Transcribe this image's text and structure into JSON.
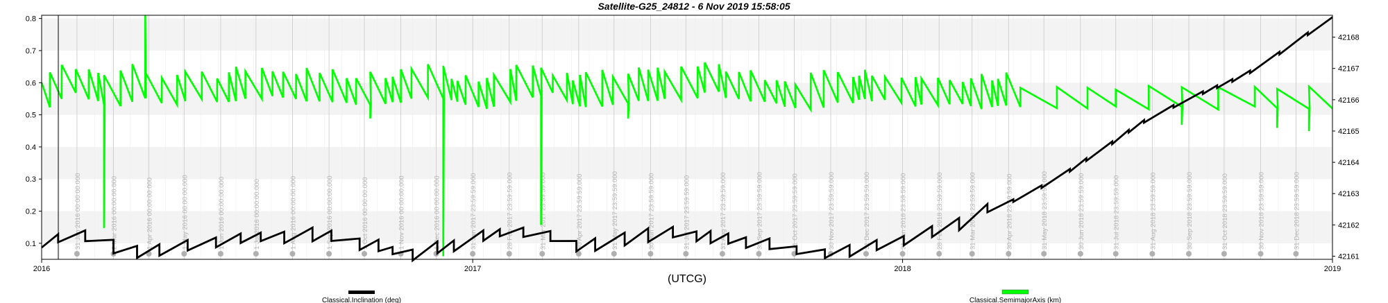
{
  "chart_data": {
    "type": "line",
    "title": "Satellite-G25_24812 -  6 Nov 2019 15:58:05",
    "xlabel": "(UTCG)",
    "x_range": [
      "2016-01-01",
      "2019-01-01"
    ],
    "x_major_ticks": [
      "2016",
      "2017",
      "2018",
      "2019"
    ],
    "left_axis": {
      "range": [
        0.05,
        0.81
      ],
      "ticks": [
        "0.1",
        "0.2",
        "0.3",
        "0.4",
        "0.5",
        "0.6",
        "0.7",
        "0.8"
      ]
    },
    "right_axis": {
      "range": [
        42160.9,
        42168.7
      ],
      "ticks": [
        "42161",
        "42162",
        "42163",
        "42164",
        "42165",
        "42166",
        "42167",
        "42168"
      ]
    },
    "grid": true,
    "legend_placement": "bottom",
    "event_markers": [
      {
        "date": "2016-01-31",
        "label": "31 Jan 2016 00:00:00.000"
      },
      {
        "date": "2016-03-02",
        "label": "2 Mar 2016 00:00:00.000"
      },
      {
        "date": "2016-04-01",
        "label": "1 Apr 2016 00:00:00.000"
      },
      {
        "date": "2016-05-01",
        "label": "1 May 2016 00:00:00.000"
      },
      {
        "date": "2016-06-01",
        "label": "1 Jun 2016 00:00:00.000"
      },
      {
        "date": "2016-07-01",
        "label": "1 Jul 2016 00:00:00.000"
      },
      {
        "date": "2016-08-01",
        "label": "1 Aug 2016 00:00:00.000"
      },
      {
        "date": "2016-09-01",
        "label": "1 Sep 2016 00:00:00.000"
      },
      {
        "date": "2016-10-01",
        "label": "1 Oct 2016 00:00:00.000"
      },
      {
        "date": "2016-11-01",
        "label": "1 Nov 2016 00:00:00.000"
      },
      {
        "date": "2016-12-01",
        "label": "1 Dec 2016 00:00:00.000"
      },
      {
        "date": "2017-01-01",
        "label": "31 Jan 2017 23:59:59.000"
      },
      {
        "date": "2017-02-01",
        "label": "28 Feb 2017 23:59:59.000"
      },
      {
        "date": "2017-03-01",
        "label": "31 Mar 2017 23:59:59.000"
      },
      {
        "date": "2017-04-01",
        "label": "30 Apr 2017 23:59:59.000"
      },
      {
        "date": "2017-05-01",
        "label": "31 May 2017 23:59:59.000"
      },
      {
        "date": "2017-06-01",
        "label": "30 Jun 2017 23:59:59.000"
      },
      {
        "date": "2017-07-01",
        "label": "31 Jul 2017 23:59:59.000"
      },
      {
        "date": "2017-08-01",
        "label": "31 Aug 2017 23:59:59.000"
      },
      {
        "date": "2017-09-01",
        "label": "30 Sep 2017 23:59:59.000"
      },
      {
        "date": "2017-10-01",
        "label": "31 Oct 2017 23:59:59.000"
      },
      {
        "date": "2017-11-01",
        "label": "30 Nov 2017 23:59:59.000"
      },
      {
        "date": "2017-12-01",
        "label": "31 Dec 2017 23:59:59.000"
      },
      {
        "date": "2018-01-01",
        "label": "31 Jan 2018 23:59:59.000"
      },
      {
        "date": "2018-02-01",
        "label": "28 Feb 2018 23:59:59.000"
      },
      {
        "date": "2018-03-01",
        "label": "31 Mar 2018 23:59:59.000"
      },
      {
        "date": "2018-04-01",
        "label": "30 Apr 2018 23:59:59.000"
      },
      {
        "date": "2018-05-01",
        "label": "31 May 2018 23:59:59.000"
      },
      {
        "date": "2018-06-01",
        "label": "30 Jun 2018 23:59:59.000"
      },
      {
        "date": "2018-07-01",
        "label": "31 Jul 2018 23:59:59.000"
      },
      {
        "date": "2018-08-01",
        "label": "31 Aug 2018 23:59:59.000"
      },
      {
        "date": "2018-09-01",
        "label": "30 Sep 2018 23:59:59.000"
      },
      {
        "date": "2018-10-01",
        "label": "31 Oct 2018 23:59:59.000"
      },
      {
        "date": "2018-11-01",
        "label": "30 Nov 2018 23:59:59.000"
      },
      {
        "date": "2018-12-01",
        "label": "31 Dec 2018 23:59:59.000"
      }
    ],
    "series": [
      {
        "name": "Classical.Inclination (deg)",
        "axis": "left",
        "color": "#000000",
        "x": [
          "2016-01-01",
          "2016-01-20",
          "2016-02-10",
          "2016-03-01",
          "2016-03-20",
          "2016-04-10",
          "2016-05-01",
          "2016-05-20",
          "2016-06-10",
          "2016-07-01",
          "2016-07-20",
          "2016-08-10",
          "2016-09-01",
          "2016-09-20",
          "2016-10-10",
          "2016-11-01",
          "2016-11-20",
          "2016-12-10",
          "2017-01-01",
          "2017-01-20",
          "2017-02-10",
          "2017-03-01",
          "2017-03-20",
          "2017-04-10",
          "2017-05-01",
          "2017-05-20",
          "2017-06-10",
          "2017-07-01",
          "2017-07-20",
          "2017-08-10",
          "2017-09-01",
          "2017-09-20",
          "2017-10-10",
          "2017-11-01",
          "2017-11-20",
          "2017-12-10",
          "2018-01-01",
          "2018-01-20",
          "2018-02-10",
          "2018-03-01",
          "2018-03-20",
          "2018-04-10",
          "2018-05-01",
          "2018-05-20",
          "2018-06-10",
          "2018-07-01",
          "2018-07-20",
          "2018-08-10",
          "2018-09-01",
          "2018-09-20",
          "2018-10-10",
          "2018-11-01",
          "2018-11-20",
          "2018-12-10",
          "2019-01-01"
        ],
        "values": [
          0.1,
          0.12,
          0.13,
          0.09,
          0.07,
          0.08,
          0.09,
          0.1,
          0.11,
          0.12,
          0.12,
          0.13,
          0.12,
          0.11,
          0.09,
          0.07,
          0.07,
          0.09,
          0.11,
          0.13,
          0.14,
          0.13,
          0.1,
          0.09,
          0.11,
          0.12,
          0.13,
          0.13,
          0.12,
          0.11,
          0.1,
          0.09,
          0.07,
          0.07,
          0.08,
          0.09,
          0.11,
          0.13,
          0.15,
          0.18,
          0.21,
          0.24,
          0.28,
          0.32,
          0.37,
          0.42,
          0.47,
          0.51,
          0.55,
          0.58,
          0.61,
          0.65,
          0.7,
          0.75,
          0.8
        ]
      },
      {
        "name": "Classical.SemimajorAxis (km)",
        "axis": "right",
        "color": "#00ff00",
        "x": [
          "2016-01-01",
          "2016-01-15",
          "2016-02-01",
          "2016-02-15",
          "2016-03-01",
          "2016-03-15",
          "2016-04-01",
          "2016-04-15",
          "2016-05-01",
          "2016-06-01",
          "2016-07-01",
          "2016-08-01",
          "2016-09-01",
          "2016-10-01",
          "2016-11-01",
          "2016-12-01",
          "2016-12-15",
          "2017-01-01",
          "2017-02-01",
          "2017-03-01",
          "2017-03-15",
          "2017-04-01",
          "2017-05-01",
          "2017-06-01",
          "2017-07-01",
          "2017-07-15",
          "2017-08-01",
          "2017-09-01",
          "2017-10-01",
          "2017-11-01",
          "2017-12-01",
          "2018-01-01",
          "2018-02-01",
          "2018-03-01",
          "2018-04-01",
          "2018-05-01",
          "2018-06-01",
          "2018-07-01",
          "2018-08-01",
          "2018-09-01",
          "2018-10-01",
          "2018-11-01",
          "2018-12-01",
          "2019-01-01"
        ],
        "values": [
          42166.1,
          42166.6,
          42166.3,
          42166.2,
          42166.0,
          42166.4,
          42166.2,
          42166.1,
          42166.3,
          42166.2,
          42166.4,
          42166.3,
          42166.2,
          42166.1,
          42166.3,
          42166.4,
          42166.2,
          42166.0,
          42166.3,
          42166.5,
          42166.2,
          42166.1,
          42166.2,
          42166.3,
          42166.4,
          42166.6,
          42166.3,
          42166.2,
          42166.0,
          42166.2,
          42166.3,
          42166.1,
          42166.2,
          42166.0,
          42166.1,
          42166.0,
          42166.1,
          42166.0,
          42166.1,
          42166.0,
          42166.1,
          42166.0,
          42166.1,
          42166.0
        ]
      }
    ],
    "semimajor_dips": [
      {
        "date": "2016-02-22",
        "value": 42161.9
      },
      {
        "date": "2016-11-25",
        "value": 42161.0
      },
      {
        "date": "2017-02-22",
        "value": 42162.0
      },
      {
        "date": "2016-09-25",
        "value": 42165.4
      },
      {
        "date": "2017-05-10",
        "value": 42165.4
      },
      {
        "date": "2018-08-20",
        "value": 42165.2
      },
      {
        "date": "2018-11-05",
        "value": 42165.1
      },
      {
        "date": "2018-12-10",
        "value": 42165.0
      }
    ],
    "semimajor_spike": {
      "date": "2016-03-27",
      "value": 42168.7
    }
  }
}
